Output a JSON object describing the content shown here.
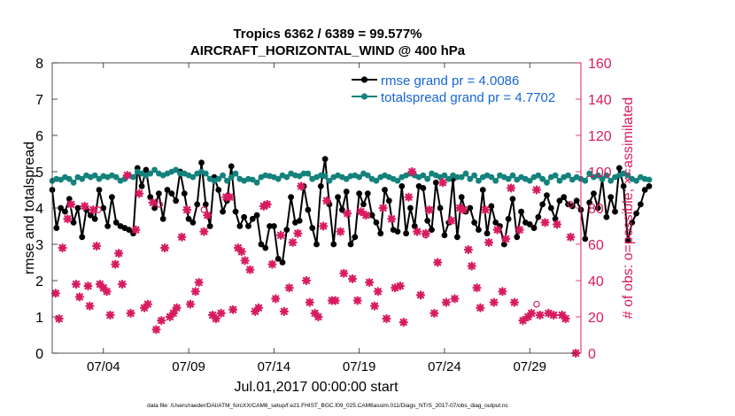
{
  "chart_data": {
    "type": "line",
    "title": "Tropics 6362 / 6389 = 99.577%",
    "subtitle": "AIRCRAFT_HORIZONTAL_WIND @ 400 hPa",
    "xlabel": "Jul.01,2017 00:00:00 start",
    "ylabel": "rmse and totalspread",
    "y2label": "# of obs: o=possible; ×=assimilated",
    "footer": "data file: /Users/raeder/DAI/ATM_forcXX/CAM6_setup/f.e21.FHIST_BGC.f09_025.CAM6assim.011/Diags_NTrS_2017-07/obs_diag_output.nc",
    "xlim": [
      1.0,
      32.0
    ],
    "ylim": [
      0,
      8
    ],
    "y2lim": [
      0,
      160
    ],
    "xticks": [
      {
        "value": 4.0,
        "label": "07/04"
      },
      {
        "value": 9.0,
        "label": "07/09"
      },
      {
        "value": 14.0,
        "label": "07/14"
      },
      {
        "value": 19.0,
        "label": "07/19"
      },
      {
        "value": 24.0,
        "label": "07/24"
      },
      {
        "value": 29.0,
        "label": "07/29"
      }
    ],
    "yticks": [
      "0",
      "1",
      "2",
      "3",
      "4",
      "5",
      "6",
      "7",
      "8"
    ],
    "y2ticks": [
      "0",
      "20",
      "40",
      "60",
      "80",
      "100",
      "120",
      "140",
      "160"
    ],
    "legend": {
      "location": "top-right",
      "entries": [
        {
          "label": "rmse grand pr = 4.0086",
          "color": "#000000"
        },
        {
          "label": "totalspread grand pr = 4.7702",
          "color": "#14827c"
        }
      ]
    },
    "x_start": 1.0,
    "x_step": 0.25,
    "series": [
      {
        "name": "rmse",
        "color": "#000000",
        "values": [
          4.5,
          3.45,
          4.0,
          3.9,
          4.25,
          3.6,
          4.0,
          3.2,
          3.95,
          3.8,
          3.7,
          4.5,
          4.0,
          3.5,
          4.3,
          3.6,
          3.5,
          3.45,
          3.4,
          3.3,
          5.1,
          4.6,
          5.05,
          4.3,
          4.0,
          4.4,
          3.7,
          4.5,
          4.4,
          4.2,
          5.0,
          4.4,
          3.7,
          3.6,
          4.1,
          5.25,
          4.1,
          3.5,
          4.85,
          4.5,
          3.9,
          4.2,
          5.15,
          3.9,
          3.5,
          3.75,
          3.5,
          3.7,
          3.8,
          3.0,
          2.9,
          3.5,
          3.5,
          2.6,
          2.5,
          3.4,
          4.3,
          3.6,
          3.65,
          4.6,
          3.95,
          3.45,
          3.0,
          4.6,
          5.35,
          4.1,
          3.0,
          4.3,
          3.95,
          4.45,
          3.0,
          3.2,
          4.4,
          4.1,
          4.4,
          3.8,
          3.6,
          3.3,
          4.5,
          4.2,
          3.4,
          3.35,
          4.6,
          3.3,
          4.0,
          3.5,
          4.6,
          4.55,
          3.65,
          3.4,
          4.7,
          4.0,
          3.25,
          3.6,
          4.8,
          3.2,
          4.3,
          3.9,
          4.0,
          3.6,
          3.4,
          4.5,
          3.3,
          4.05,
          3.6,
          3.5,
          3.0,
          3.7,
          4.25,
          3.2,
          3.9,
          3.6,
          3.55,
          3.45,
          3.75,
          4.1,
          4.35,
          4.0,
          3.7,
          4.2,
          4.3,
          4.1,
          4.05,
          4.2,
          3.95,
          3.15,
          4.15,
          4.4,
          4.0,
          4.8,
          3.75,
          4.3,
          3.9,
          5.1,
          4.6,
          3.1,
          3.6,
          3.85,
          4.1,
          4.5,
          4.6
        ]
      },
      {
        "name": "totalspread",
        "color": "#14827c",
        "values": [
          4.75,
          4.8,
          4.78,
          4.85,
          4.8,
          4.7,
          4.85,
          4.8,
          4.9,
          4.85,
          4.9,
          4.8,
          4.88,
          4.85,
          4.9,
          4.85,
          4.75,
          4.8,
          4.9,
          4.85,
          5.0,
          4.95,
          4.9,
          4.95,
          5.05,
          4.95,
          4.9,
          4.95,
          5.0,
          5.05,
          4.95,
          4.95,
          4.9,
          4.85,
          4.95,
          5.0,
          4.95,
          4.8,
          4.75,
          4.8,
          4.9,
          4.75,
          4.85,
          4.95,
          4.8,
          4.75,
          4.8,
          4.78,
          4.7,
          4.85,
          4.9,
          4.88,
          4.85,
          4.8,
          4.9,
          4.85,
          4.95,
          4.9,
          4.88,
          4.95,
          4.95,
          4.8,
          4.85,
          4.9,
          4.88,
          4.75,
          4.85,
          4.9,
          4.85,
          4.8,
          4.88,
          4.9,
          4.85,
          4.95,
          4.9,
          4.8,
          4.75,
          4.85,
          4.9,
          4.85,
          4.8,
          4.75,
          4.85,
          4.9,
          4.95,
          4.9,
          4.85,
          4.9,
          4.8,
          4.95,
          4.9,
          4.85,
          4.9,
          4.8,
          4.9,
          4.85,
          4.85,
          4.95,
          4.8,
          4.9,
          4.75,
          4.85,
          4.9,
          4.85,
          4.75,
          4.9,
          4.85,
          4.8,
          4.9,
          4.78,
          4.85,
          4.8,
          4.75,
          4.85,
          4.9,
          4.8,
          4.7,
          4.85,
          4.9,
          4.75,
          4.85,
          4.9,
          4.78,
          4.85,
          4.8,
          4.75,
          4.95,
          4.85,
          4.9,
          4.8,
          4.9,
          4.75,
          4.85,
          4.9,
          4.95,
          4.9,
          4.8,
          4.75,
          4.85,
          4.8,
          4.78
        ]
      }
    ],
    "obs_assimilated": {
      "name": "# of obs assimilated",
      "color": "#d81b60",
      "axis": "right",
      "points": [
        [
          1.2,
          33
        ],
        [
          1.4,
          19
        ],
        [
          1.6,
          58
        ],
        [
          1.9,
          74
        ],
        [
          2.1,
          82
        ],
        [
          2.4,
          38
        ],
        [
          2.6,
          31
        ],
        [
          2.9,
          81
        ],
        [
          3.1,
          37
        ],
        [
          3.2,
          26
        ],
        [
          3.4,
          79
        ],
        [
          3.6,
          59
        ],
        [
          3.8,
          38
        ],
        [
          4.0,
          36
        ],
        [
          4.2,
          34
        ],
        [
          4.4,
          21
        ],
        [
          4.7,
          49
        ],
        [
          4.9,
          55
        ],
        [
          5.1,
          38
        ],
        [
          5.4,
          98
        ],
        [
          5.6,
          22
        ],
        [
          5.9,
          68
        ],
        [
          6.1,
          88
        ],
        [
          6.4,
          25
        ],
        [
          6.6,
          27
        ],
        [
          6.9,
          83
        ],
        [
          7.1,
          13
        ],
        [
          7.4,
          18
        ],
        [
          7.6,
          58
        ],
        [
          7.9,
          20
        ],
        [
          8.1,
          22
        ],
        [
          8.3,
          25
        ],
        [
          8.6,
          64
        ],
        [
          8.9,
          79
        ],
        [
          9.1,
          27
        ],
        [
          9.4,
          34
        ],
        [
          9.6,
          39
        ],
        [
          9.9,
          67
        ],
        [
          10.1,
          76
        ],
        [
          10.4,
          21
        ],
        [
          10.6,
          19
        ],
        [
          10.9,
          22
        ],
        [
          11.2,
          86
        ],
        [
          11.4,
          86
        ],
        [
          11.6,
          24
        ],
        [
          11.9,
          58
        ],
        [
          12.1,
          56
        ],
        [
          12.3,
          51
        ],
        [
          12.6,
          46
        ],
        [
          12.9,
          23
        ],
        [
          13.1,
          25
        ],
        [
          13.4,
          81
        ],
        [
          13.6,
          82
        ],
        [
          13.9,
          49
        ],
        [
          14.1,
          30
        ],
        [
          14.4,
          65
        ],
        [
          14.6,
          23
        ],
        [
          14.9,
          36
        ],
        [
          15.1,
          61
        ],
        [
          15.4,
          66
        ],
        [
          15.6,
          92
        ],
        [
          15.9,
          40
        ],
        [
          16.1,
          28
        ],
        [
          16.4,
          22
        ],
        [
          16.6,
          20
        ],
        [
          16.9,
          70
        ],
        [
          17.1,
          84
        ],
        [
          17.4,
          29
        ],
        [
          17.6,
          29
        ],
        [
          17.9,
          67
        ],
        [
          18.1,
          44
        ],
        [
          18.3,
          77
        ],
        [
          18.6,
          41
        ],
        [
          18.9,
          29
        ],
        [
          19.1,
          78
        ],
        [
          19.4,
          76
        ],
        [
          19.6,
          39
        ],
        [
          19.9,
          26
        ],
        [
          20.1,
          34
        ],
        [
          20.4,
          80
        ],
        [
          20.6,
          19
        ],
        [
          20.9,
          74
        ],
        [
          21.1,
          36
        ],
        [
          21.4,
          37
        ],
        [
          21.6,
          17
        ],
        [
          21.9,
          86
        ],
        [
          22.1,
          100
        ],
        [
          22.4,
          67
        ],
        [
          22.6,
          32
        ],
        [
          22.9,
          66
        ],
        [
          23.1,
          79
        ],
        [
          23.4,
          22
        ],
        [
          23.6,
          50
        ],
        [
          23.9,
          94
        ],
        [
          24.1,
          28
        ],
        [
          24.4,
          73
        ],
        [
          24.6,
          30
        ],
        [
          24.9,
          80
        ],
        [
          25.1,
          79
        ],
        [
          25.4,
          57
        ],
        [
          25.6,
          48
        ],
        [
          25.9,
          36
        ],
        [
          26.1,
          25
        ],
        [
          26.4,
          79
        ],
        [
          26.6,
          61
        ],
        [
          26.9,
          28
        ],
        [
          27.1,
          68
        ],
        [
          27.4,
          34
        ],
        [
          27.6,
          63
        ],
        [
          27.9,
          91
        ],
        [
          28.1,
          28
        ],
        [
          28.4,
          68
        ],
        [
          28.6,
          18
        ],
        [
          28.9,
          20
        ],
        [
          29.1,
          22
        ],
        [
          29.4,
          90
        ],
        [
          29.6,
          21
        ],
        [
          29.9,
          72
        ],
        [
          30.1,
          22
        ],
        [
          30.4,
          21
        ],
        [
          30.6,
          71
        ],
        [
          30.9,
          21
        ],
        [
          31.1,
          19
        ],
        [
          31.4,
          64
        ],
        [
          31.7,
          0
        ]
      ]
    },
    "obs_possible": {
      "name": "# of obs possible",
      "color": "#d81b60",
      "axis": "right",
      "points": [
        [
          3.7,
          79
        ],
        [
          7.3,
          82
        ],
        [
          9.9,
          79
        ],
        [
          22.9,
          65
        ],
        [
          29.4,
          27
        ],
        [
          31.4,
          82
        ]
      ]
    }
  }
}
